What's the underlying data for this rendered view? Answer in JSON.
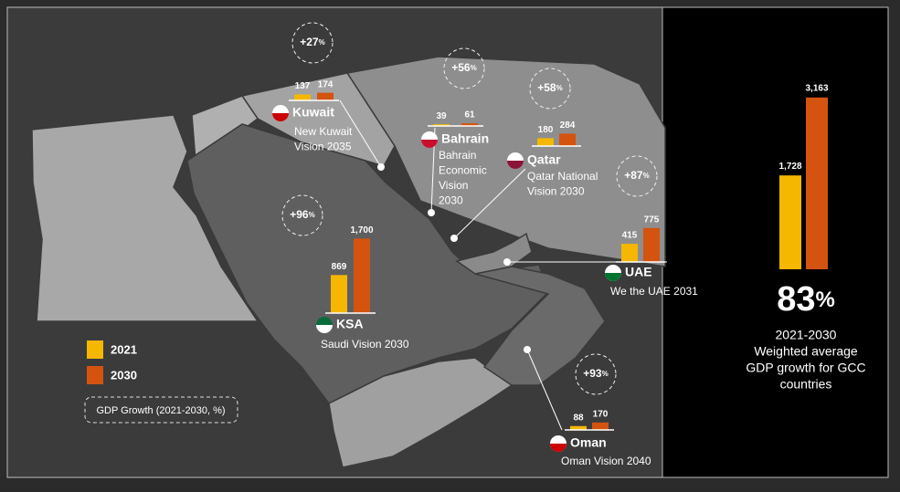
{
  "countries": [
    {
      "name": "Kuwait",
      "vision": [
        "New Kuwait",
        "Vision 2035"
      ],
      "growth": {
        "text": "+27",
        "unit": "%"
      },
      "values": [
        137,
        174
      ]
    },
    {
      "name": "Bahrain",
      "vision": [
        "Bahrain",
        "Economic",
        "Vision",
        "2030"
      ],
      "growth": {
        "text": "+56",
        "unit": "%"
      },
      "values": [
        39,
        61
      ]
    },
    {
      "name": "Qatar",
      "vision": [
        "Qatar National",
        "Vision 2030"
      ],
      "growth": {
        "text": "+58",
        "unit": "%"
      },
      "values": [
        180,
        284
      ]
    },
    {
      "name": "UAE",
      "vision": [
        "We the UAE 2031"
      ],
      "growth": {
        "text": "+87",
        "unit": "%"
      },
      "values": [
        415,
        775
      ]
    },
    {
      "name": "KSA",
      "vision": [
        "Saudi Vision 2030"
      ],
      "growth": {
        "text": "+96",
        "unit": "%"
      },
      "values": [
        869,
        1700
      ],
      "value_labels": [
        "869",
        "1,700"
      ]
    },
    {
      "name": "Oman",
      "vision": [
        "Oman Vision 2040"
      ],
      "growth": {
        "text": "+93",
        "unit": "%"
      },
      "values": [
        88,
        170
      ]
    }
  ],
  "legend": {
    "series": [
      {
        "name": "2021",
        "color": "#f5b700"
      },
      {
        "name": "2030",
        "color": "#d4530f"
      }
    ],
    "note": "GDP Growth (2021-2030, %)"
  },
  "gcc": {
    "values": [
      1728,
      3163
    ],
    "value_labels": [
      "1,728",
      "3,163"
    ],
    "growth": {
      "text": "83",
      "unit": "%"
    },
    "caption": [
      "2021-2030",
      "Weighted average",
      "GDP growth for GCC",
      "countries"
    ]
  }
}
